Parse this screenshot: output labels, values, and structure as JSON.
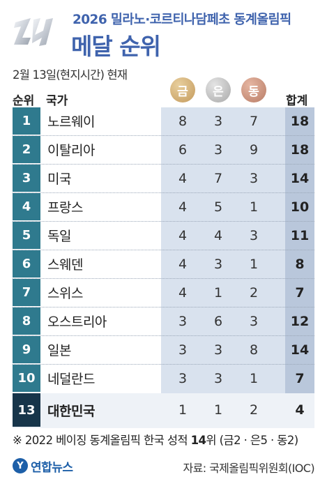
{
  "header": {
    "title_top": "2026 밀라노·코르티나담페초 동계올림픽",
    "title_main": "메달 순위"
  },
  "date_note": "2월 13일(현지시간) 현재",
  "columns": {
    "rank": "순위",
    "country": "국가",
    "gold": "금",
    "silver": "은",
    "bronze": "동",
    "total": "합계"
  },
  "colors": {
    "title": "#3f63ad",
    "rank_badge": "#2f7a8e",
    "korea_badge": "#17354a",
    "medal_bg": "#d9e2ee",
    "total_bg": "#b9c7db",
    "gold": "#c49a5c",
    "silver": "#a9a9a9",
    "bronze": "#b87c66"
  },
  "chart_data": {
    "type": "table",
    "columns": [
      "순위",
      "국가",
      "금",
      "은",
      "동",
      "합계"
    ],
    "rows": [
      {
        "rank": "1",
        "country": "노르웨이",
        "gold": "8",
        "silver": "3",
        "bronze": "7",
        "total": "18"
      },
      {
        "rank": "2",
        "country": "이탈리아",
        "gold": "6",
        "silver": "3",
        "bronze": "9",
        "total": "18"
      },
      {
        "rank": "3",
        "country": "미국",
        "gold": "4",
        "silver": "7",
        "bronze": "3",
        "total": "14"
      },
      {
        "rank": "4",
        "country": "프랑스",
        "gold": "4",
        "silver": "5",
        "bronze": "1",
        "total": "10"
      },
      {
        "rank": "5",
        "country": "독일",
        "gold": "4",
        "silver": "4",
        "bronze": "3",
        "total": "11"
      },
      {
        "rank": "6",
        "country": "스웨덴",
        "gold": "4",
        "silver": "3",
        "bronze": "1",
        "total": "8"
      },
      {
        "rank": "7",
        "country": "스위스",
        "gold": "4",
        "silver": "1",
        "bronze": "2",
        "total": "7"
      },
      {
        "rank": "8",
        "country": "오스트리아",
        "gold": "3",
        "silver": "6",
        "bronze": "3",
        "total": "12"
      },
      {
        "rank": "9",
        "country": "일본",
        "gold": "3",
        "silver": "3",
        "bronze": "8",
        "total": "14"
      },
      {
        "rank": "10",
        "country": "네덜란드",
        "gold": "3",
        "silver": "3",
        "bronze": "1",
        "total": "7"
      },
      {
        "rank": "13",
        "country": "대한민국",
        "gold": "1",
        "silver": "1",
        "bronze": "2",
        "total": "4",
        "highlight": true
      }
    ]
  },
  "footnote": {
    "prefix": "※ 2022 베이징 동계올림픽 한국 성적 ",
    "rank": "14",
    "suffix": "위 (금2 · 은5 · 동2)"
  },
  "yonhap": {
    "mark": "Y",
    "name": "연합뉴스"
  },
  "source": "자료: 국제올림픽위원회(IOC)"
}
